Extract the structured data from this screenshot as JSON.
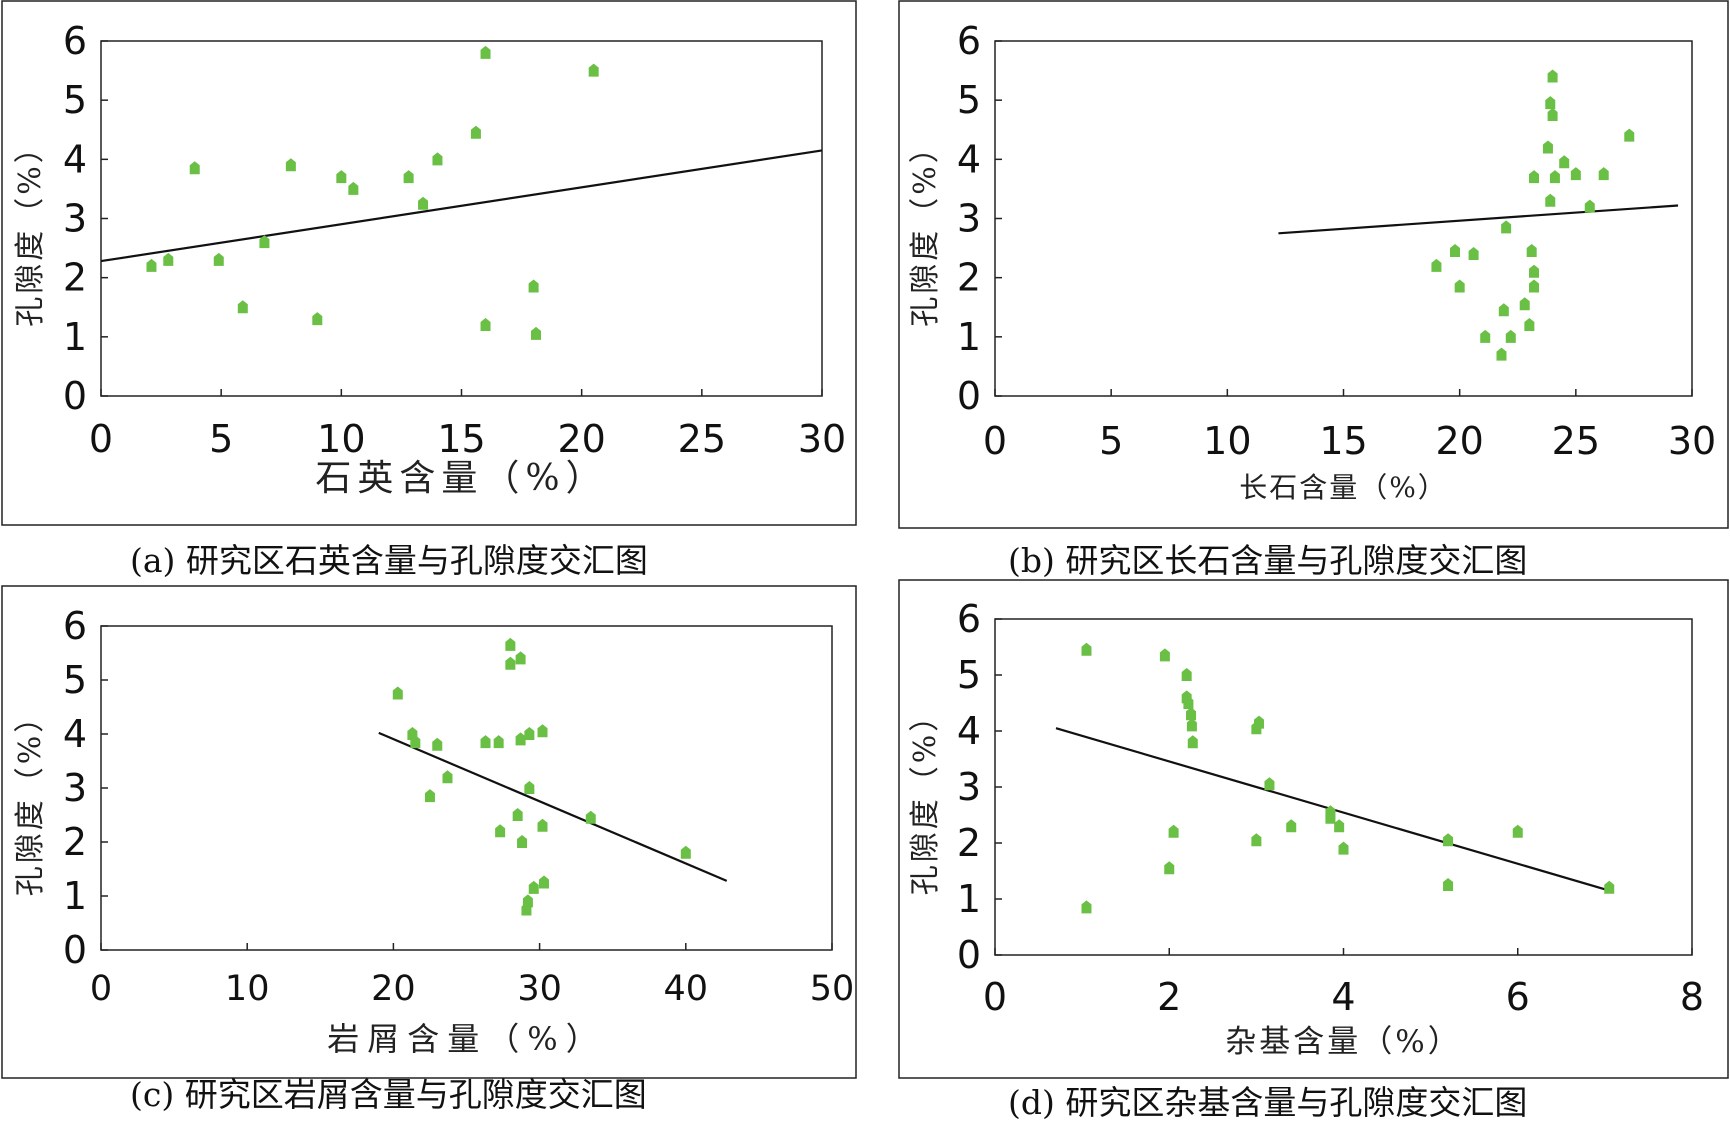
{
  "chart_data": [
    {
      "type": "scatter",
      "panel": "(a)",
      "caption": "(a) 研究区石英含量与孔隙度交汇图",
      "xlabel": "石英含量（%）",
      "ylabel": "孔隙度（%）",
      "xlim": [
        0,
        30
      ],
      "ylim": [
        0,
        6
      ],
      "xticks": [
        "0",
        "5",
        "10",
        "15",
        "20",
        "25",
        "30"
      ],
      "yticks": [
        "0",
        "1",
        "2",
        "3",
        "4",
        "5",
        "6"
      ],
      "grid": false,
      "marker_color": "#6abf45",
      "trendline": [
        [
          0,
          2.28
        ],
        [
          30,
          4.15
        ]
      ],
      "points": [
        [
          2.1,
          2.2
        ],
        [
          2.8,
          2.3
        ],
        [
          3.9,
          3.85
        ],
        [
          4.9,
          2.3
        ],
        [
          5.9,
          1.5
        ],
        [
          6.8,
          2.6
        ],
        [
          7.9,
          3.9
        ],
        [
          9.0,
          1.3
        ],
        [
          10.0,
          3.7
        ],
        [
          10.5,
          3.5
        ],
        [
          12.8,
          3.7
        ],
        [
          13.4,
          3.25
        ],
        [
          14.0,
          4.0
        ],
        [
          15.6,
          4.45
        ],
        [
          16.0,
          5.8
        ],
        [
          16.0,
          1.2
        ],
        [
          18.0,
          1.85
        ],
        [
          18.1,
          1.05
        ],
        [
          20.5,
          5.5
        ]
      ]
    },
    {
      "type": "scatter",
      "panel": "(b)",
      "caption": "(b) 研究区长石含量与孔隙度交汇图",
      "xlabel": "长石含量（%）",
      "ylabel": "孔隙度（%）",
      "xlim": [
        0,
        30
      ],
      "ylim": [
        0,
        6
      ],
      "xticks": [
        "0",
        "5",
        "10",
        "15",
        "20",
        "25",
        "30"
      ],
      "yticks": [
        "0",
        "1",
        "2",
        "3",
        "4",
        "5",
        "6"
      ],
      "grid": false,
      "marker_color": "#6abf45",
      "trendline": [
        [
          12.2,
          2.75
        ],
        [
          29.4,
          3.22
        ]
      ],
      "points": [
        [
          19.0,
          2.2
        ],
        [
          19.8,
          2.45
        ],
        [
          20.0,
          1.85
        ],
        [
          20.6,
          2.4
        ],
        [
          21.1,
          1.0
        ],
        [
          21.8,
          0.7
        ],
        [
          21.9,
          1.45
        ],
        [
          22.0,
          2.85
        ],
        [
          22.2,
          1.0
        ],
        [
          22.8,
          1.55
        ],
        [
          23.0,
          1.2
        ],
        [
          23.1,
          2.45
        ],
        [
          23.2,
          2.1
        ],
        [
          23.2,
          1.85
        ],
        [
          23.2,
          3.7
        ],
        [
          23.8,
          4.2
        ],
        [
          23.9,
          3.3
        ],
        [
          23.9,
          4.95
        ],
        [
          24.0,
          4.75
        ],
        [
          24.0,
          5.4
        ],
        [
          24.1,
          3.7
        ],
        [
          24.5,
          3.95
        ],
        [
          25.0,
          3.75
        ],
        [
          25.6,
          3.2
        ],
        [
          26.2,
          3.75
        ],
        [
          27.3,
          4.4
        ]
      ]
    },
    {
      "type": "scatter",
      "panel": "(c)",
      "caption": "(c) 研究区岩屑含量与孔隙度交汇图",
      "xlabel": "岩屑含量（%）",
      "ylabel": "孔隙度（%）",
      "xlim": [
        0,
        50
      ],
      "ylim": [
        0,
        6
      ],
      "xticks": [
        "0",
        "10",
        "20",
        "30",
        "40",
        "50"
      ],
      "yticks": [
        "0",
        "1",
        "2",
        "3",
        "4",
        "5",
        "6"
      ],
      "grid": false,
      "marker_color": "#6abf45",
      "trendline": [
        [
          19.0,
          4.02
        ],
        [
          42.8,
          1.28
        ]
      ],
      "points": [
        [
          20.3,
          4.75
        ],
        [
          21.3,
          4.0
        ],
        [
          21.5,
          3.85
        ],
        [
          22.5,
          2.85
        ],
        [
          23.0,
          3.8
        ],
        [
          23.7,
          3.2
        ],
        [
          26.3,
          3.85
        ],
        [
          27.2,
          3.85
        ],
        [
          27.3,
          2.2
        ],
        [
          28.0,
          5.65
        ],
        [
          28.0,
          5.3
        ],
        [
          28.5,
          2.5
        ],
        [
          28.7,
          3.9
        ],
        [
          28.7,
          5.4
        ],
        [
          28.8,
          2.0
        ],
        [
          29.1,
          0.75
        ],
        [
          29.2,
          0.9
        ],
        [
          29.3,
          3.0
        ],
        [
          29.3,
          4.0
        ],
        [
          29.6,
          1.15
        ],
        [
          30.2,
          4.05
        ],
        [
          30.2,
          2.3
        ],
        [
          30.3,
          1.25
        ],
        [
          33.5,
          2.45
        ],
        [
          40.0,
          1.8
        ]
      ]
    },
    {
      "type": "scatter",
      "panel": "(d)",
      "caption": "(d) 研究区杂基含量与孔隙度交汇图",
      "xlabel": "杂基含量（%）",
      "ylabel": "孔隙度（%）",
      "xlim": [
        0,
        8
      ],
      "ylim": [
        0,
        6
      ],
      "xticks": [
        "0",
        "2",
        "4",
        "6",
        "8"
      ],
      "yticks": [
        "0",
        "1",
        "2",
        "3",
        "4",
        "5",
        "6"
      ],
      "grid": false,
      "marker_color": "#6abf45",
      "trendline": [
        [
          0.7,
          4.05
        ],
        [
          7.05,
          1.15
        ]
      ],
      "points": [
        [
          1.05,
          0.85
        ],
        [
          1.05,
          5.45
        ],
        [
          1.95,
          5.35
        ],
        [
          2.0,
          1.55
        ],
        [
          2.05,
          2.2
        ],
        [
          2.2,
          5.0
        ],
        [
          2.2,
          4.6
        ],
        [
          2.22,
          4.5
        ],
        [
          2.25,
          4.3
        ],
        [
          2.26,
          4.1
        ],
        [
          2.27,
          3.8
        ],
        [
          3.0,
          2.05
        ],
        [
          3.0,
          4.05
        ],
        [
          3.03,
          4.15
        ],
        [
          3.15,
          3.05
        ],
        [
          3.4,
          2.3
        ],
        [
          3.85,
          2.55
        ],
        [
          3.85,
          2.45
        ],
        [
          3.95,
          2.3
        ],
        [
          4.0,
          1.9
        ],
        [
          5.2,
          2.05
        ],
        [
          5.2,
          1.25
        ],
        [
          6.0,
          2.2
        ],
        [
          7.05,
          1.2
        ]
      ]
    }
  ]
}
